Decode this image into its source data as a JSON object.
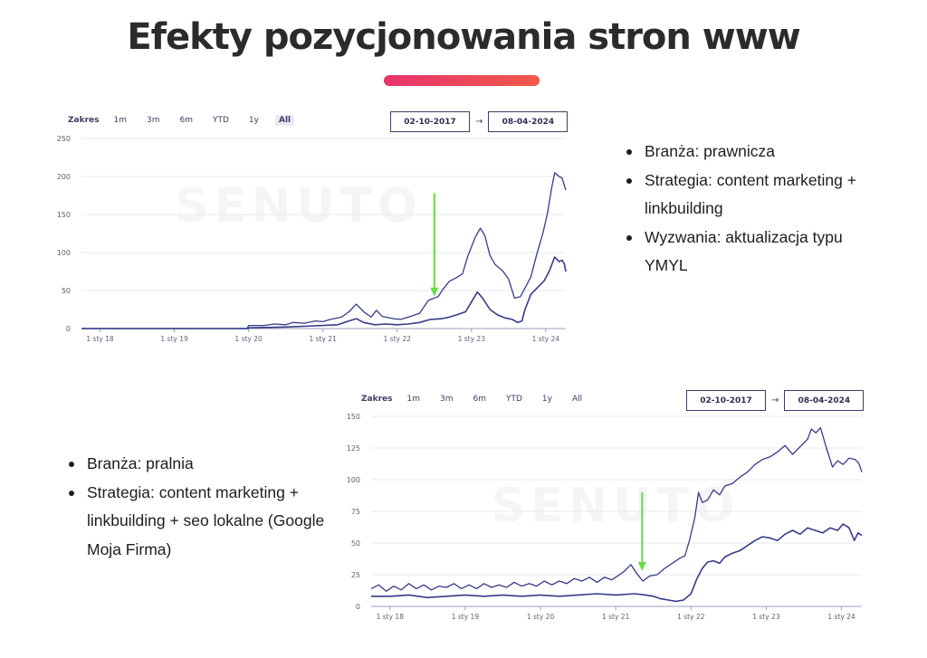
{
  "page": {
    "title": "Efekty pozycjonowania stron www",
    "accent_gradient": [
      "#e8336d",
      "#f05a4b"
    ]
  },
  "charts": [
    {
      "range_label": "Zakres",
      "range_buttons": [
        "1m",
        "3m",
        "6m",
        "YTD",
        "1y",
        "All"
      ],
      "active_button": "All",
      "date_from": "02-10-2017",
      "date_to": "08-04-2024",
      "date_arrow": "→",
      "watermark": "SENUTO",
      "bullets": [
        "Branża: prawnicza",
        "Strategia: content marketing + linkbuilding",
        "Wyzwania: aktualizacja typu YMYL"
      ]
    },
    {
      "range_label": "Zakres",
      "range_buttons": [
        "1m",
        "3m",
        "6m",
        "YTD",
        "1y",
        "All"
      ],
      "active_button": "",
      "date_from": "02-10-2017",
      "date_to": "08-04-2024",
      "date_arrow": "→",
      "watermark": "SENUTO",
      "bullets": [
        "Branża: pralnia",
        "Strategia: content marketing + linkbuilding + seo lokalne (Google Moja Firma)"
      ]
    }
  ],
  "chart_data": [
    {
      "type": "line",
      "x_unit": "year",
      "xlim": [
        2017.75,
        2024.27
      ],
      "xticks": [
        2018,
        2019,
        2020,
        2021,
        2022,
        2023,
        2024
      ],
      "xtick_labels": [
        "1 sty 18",
        "1 sty 19",
        "1 sty 20",
        "1 sty 21",
        "1 sty 22",
        "1 sty 23",
        "1 sty 24"
      ],
      "ylim": [
        0,
        250
      ],
      "yticks": [
        0,
        50,
        100,
        150,
        200,
        250
      ],
      "grid": true,
      "line_color": "#363b87",
      "annotation": {
        "type": "arrow",
        "color": "#66dd44",
        "x": 2022.5,
        "y_from": 178,
        "y_to": 42
      },
      "series": [
        {
          "values": [
            [
              2017.75,
              0
            ],
            [
              2019.0,
              0
            ],
            [
              2019.98,
              0
            ],
            [
              2020.0,
              4
            ],
            [
              2020.2,
              4
            ],
            [
              2020.35,
              6
            ],
            [
              2020.5,
              5
            ],
            [
              2020.6,
              8
            ],
            [
              2020.75,
              7
            ],
            [
              2020.9,
              10
            ],
            [
              2021.0,
              9
            ],
            [
              2021.1,
              12
            ],
            [
              2021.25,
              15
            ],
            [
              2021.35,
              22
            ],
            [
              2021.45,
              32
            ],
            [
              2021.55,
              22
            ],
            [
              2021.65,
              15
            ],
            [
              2021.72,
              24
            ],
            [
              2021.8,
              16
            ],
            [
              2021.95,
              13
            ],
            [
              2022.05,
              12
            ],
            [
              2022.15,
              15
            ],
            [
              2022.3,
              20
            ],
            [
              2022.42,
              37
            ],
            [
              2022.55,
              42
            ],
            [
              2022.62,
              52
            ],
            [
              2022.7,
              62
            ],
            [
              2022.8,
              67
            ],
            [
              2022.88,
              72
            ],
            [
              2022.95,
              95
            ],
            [
              2023.05,
              120
            ],
            [
              2023.12,
              132
            ],
            [
              2023.18,
              122
            ],
            [
              2023.25,
              96
            ],
            [
              2023.32,
              84
            ],
            [
              2023.42,
              76
            ],
            [
              2023.5,
              65
            ],
            [
              2023.58,
              40
            ],
            [
              2023.66,
              42
            ],
            [
              2023.73,
              55
            ],
            [
              2023.8,
              68
            ],
            [
              2023.88,
              98
            ],
            [
              2023.96,
              125
            ],
            [
              2024.02,
              150
            ],
            [
              2024.08,
              185
            ],
            [
              2024.12,
              205
            ],
            [
              2024.18,
              200
            ],
            [
              2024.22,
              198
            ],
            [
              2024.27,
              182
            ]
          ]
        },
        {
          "values": [
            [
              2017.75,
              0
            ],
            [
              2019.99,
              0
            ],
            [
              2020.0,
              1
            ],
            [
              2020.5,
              2
            ],
            [
              2020.75,
              3
            ],
            [
              2021.0,
              4
            ],
            [
              2021.2,
              5
            ],
            [
              2021.35,
              10
            ],
            [
              2021.45,
              13
            ],
            [
              2021.55,
              8
            ],
            [
              2021.7,
              5
            ],
            [
              2021.85,
              6
            ],
            [
              2022.0,
              5
            ],
            [
              2022.15,
              6
            ],
            [
              2022.3,
              8
            ],
            [
              2022.45,
              12
            ],
            [
              2022.6,
              13
            ],
            [
              2022.7,
              15
            ],
            [
              2022.8,
              18
            ],
            [
              2022.92,
              22
            ],
            [
              2023.0,
              35
            ],
            [
              2023.08,
              48
            ],
            [
              2023.15,
              40
            ],
            [
              2023.25,
              25
            ],
            [
              2023.35,
              18
            ],
            [
              2023.45,
              14
            ],
            [
              2023.55,
              12
            ],
            [
              2023.62,
              8
            ],
            [
              2023.68,
              10
            ],
            [
              2023.72,
              25
            ],
            [
              2023.8,
              45
            ],
            [
              2023.9,
              55
            ],
            [
              2023.98,
              63
            ],
            [
              2024.05,
              76
            ],
            [
              2024.12,
              94
            ],
            [
              2024.18,
              88
            ],
            [
              2024.22,
              90
            ],
            [
              2024.25,
              85
            ],
            [
              2024.27,
              75
            ]
          ]
        }
      ]
    },
    {
      "type": "line",
      "x_unit": "year",
      "xlim": [
        2017.75,
        2024.27
      ],
      "xticks": [
        2018,
        2019,
        2020,
        2021,
        2022,
        2023,
        2024
      ],
      "xtick_labels": [
        "1 sty 18",
        "1 sty 19",
        "1 sty 20",
        "1 sty 21",
        "1 sty 22",
        "1 sty 23",
        "1 sty 24"
      ],
      "ylim": [
        0,
        150
      ],
      "yticks": [
        0,
        25,
        50,
        75,
        100,
        125,
        150
      ],
      "grid": true,
      "line_color": "#363b87",
      "annotation": {
        "type": "arrow",
        "color": "#66dd44",
        "x": 2021.35,
        "y_from": 90,
        "y_to": 28
      },
      "series": [
        {
          "values": [
            [
              2017.75,
              14
            ],
            [
              2017.85,
              17
            ],
            [
              2017.95,
              12
            ],
            [
              2018.05,
              16
            ],
            [
              2018.15,
              13
            ],
            [
              2018.25,
              18
            ],
            [
              2018.35,
              14
            ],
            [
              2018.45,
              17
            ],
            [
              2018.55,
              13
            ],
            [
              2018.65,
              16
            ],
            [
              2018.75,
              15
            ],
            [
              2018.85,
              18
            ],
            [
              2018.95,
              14
            ],
            [
              2019.05,
              17
            ],
            [
              2019.15,
              14
            ],
            [
              2019.25,
              18
            ],
            [
              2019.35,
              15
            ],
            [
              2019.45,
              17
            ],
            [
              2019.55,
              15
            ],
            [
              2019.65,
              19
            ],
            [
              2019.75,
              16
            ],
            [
              2019.85,
              18
            ],
            [
              2019.95,
              16
            ],
            [
              2020.05,
              20
            ],
            [
              2020.15,
              17
            ],
            [
              2020.25,
              20
            ],
            [
              2020.35,
              18
            ],
            [
              2020.45,
              22
            ],
            [
              2020.55,
              20
            ],
            [
              2020.65,
              23
            ],
            [
              2020.75,
              19
            ],
            [
              2020.85,
              23
            ],
            [
              2020.95,
              21
            ],
            [
              2021.05,
              25
            ],
            [
              2021.12,
              28
            ],
            [
              2021.2,
              33
            ],
            [
              2021.28,
              26
            ],
            [
              2021.36,
              20
            ],
            [
              2021.45,
              24
            ],
            [
              2021.55,
              25
            ],
            [
              2021.65,
              30
            ],
            [
              2021.75,
              34
            ],
            [
              2021.85,
              38
            ],
            [
              2021.92,
              40
            ],
            [
              2021.98,
              52
            ],
            [
              2022.05,
              70
            ],
            [
              2022.1,
              90
            ],
            [
              2022.15,
              82
            ],
            [
              2022.22,
              84
            ],
            [
              2022.3,
              92
            ],
            [
              2022.38,
              88
            ],
            [
              2022.45,
              95
            ],
            [
              2022.55,
              97
            ],
            [
              2022.65,
              102
            ],
            [
              2022.75,
              106
            ],
            [
              2022.85,
              112
            ],
            [
              2022.95,
              116
            ],
            [
              2023.05,
              118
            ],
            [
              2023.15,
              122
            ],
            [
              2023.25,
              127
            ],
            [
              2023.35,
              120
            ],
            [
              2023.45,
              126
            ],
            [
              2023.55,
              132
            ],
            [
              2023.6,
              140
            ],
            [
              2023.66,
              137
            ],
            [
              2023.72,
              141
            ],
            [
              2023.8,
              125
            ],
            [
              2023.88,
              110
            ],
            [
              2023.95,
              115
            ],
            [
              2024.02,
              112
            ],
            [
              2024.1,
              117
            ],
            [
              2024.18,
              116
            ],
            [
              2024.23,
              113
            ],
            [
              2024.27,
              106
            ]
          ]
        },
        {
          "values": [
            [
              2017.75,
              8
            ],
            [
              2018.0,
              8
            ],
            [
              2018.25,
              9
            ],
            [
              2018.5,
              7
            ],
            [
              2018.75,
              8
            ],
            [
              2019.0,
              9
            ],
            [
              2019.25,
              8
            ],
            [
              2019.5,
              9
            ],
            [
              2019.75,
              8
            ],
            [
              2020.0,
              9
            ],
            [
              2020.25,
              8
            ],
            [
              2020.5,
              9
            ],
            [
              2020.75,
              10
            ],
            [
              2021.0,
              9
            ],
            [
              2021.25,
              10
            ],
            [
              2021.4,
              9
            ],
            [
              2021.5,
              8
            ],
            [
              2021.6,
              6
            ],
            [
              2021.7,
              5
            ],
            [
              2021.8,
              4
            ],
            [
              2021.9,
              5
            ],
            [
              2022.0,
              10
            ],
            [
              2022.08,
              22
            ],
            [
              2022.15,
              30
            ],
            [
              2022.22,
              35
            ],
            [
              2022.3,
              36
            ],
            [
              2022.38,
              34
            ],
            [
              2022.45,
              39
            ],
            [
              2022.55,
              42
            ],
            [
              2022.65,
              44
            ],
            [
              2022.75,
              48
            ],
            [
              2022.85,
              52
            ],
            [
              2022.95,
              55
            ],
            [
              2023.05,
              54
            ],
            [
              2023.15,
              52
            ],
            [
              2023.25,
              57
            ],
            [
              2023.35,
              60
            ],
            [
              2023.45,
              57
            ],
            [
              2023.55,
              62
            ],
            [
              2023.65,
              60
            ],
            [
              2023.75,
              58
            ],
            [
              2023.85,
              62
            ],
            [
              2023.95,
              60
            ],
            [
              2024.02,
              65
            ],
            [
              2024.1,
              62
            ],
            [
              2024.17,
              52
            ],
            [
              2024.22,
              58
            ],
            [
              2024.27,
              56
            ]
          ]
        }
      ]
    }
  ]
}
